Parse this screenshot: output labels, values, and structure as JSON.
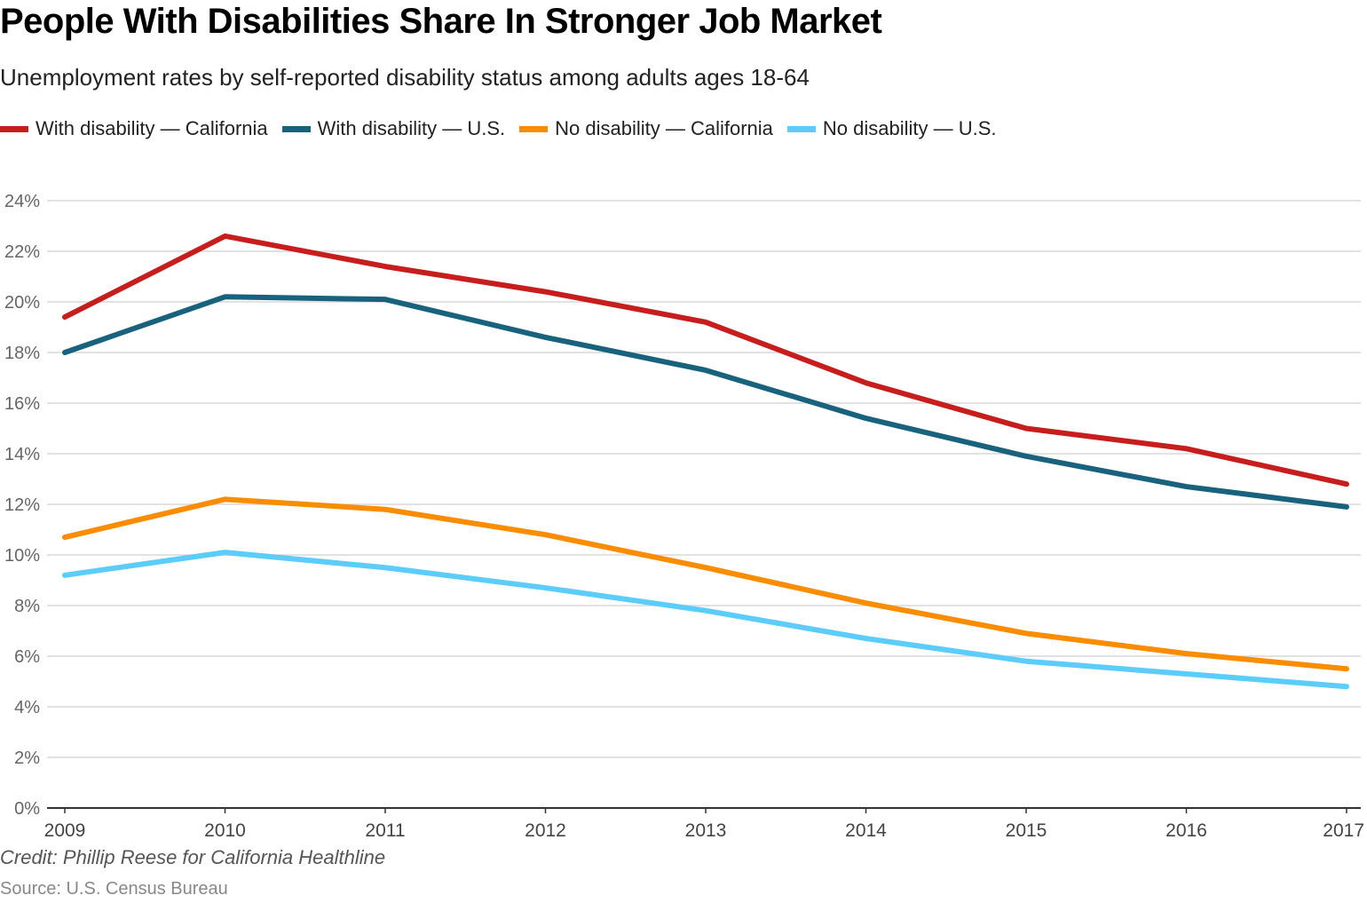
{
  "chart_data": {
    "type": "line",
    "title": "People With Disabilities Share In Stronger Job Market",
    "subtitle": "Unemployment rates by self-reported disability status among adults ages 18-64",
    "x": [
      "2009",
      "2010",
      "2011",
      "2012",
      "2013",
      "2014",
      "2015",
      "2016",
      "2017"
    ],
    "ylim": [
      0,
      24
    ],
    "yticks": [
      "0%",
      "2%",
      "4%",
      "6%",
      "8%",
      "10%",
      "12%",
      "14%",
      "16%",
      "18%",
      "20%",
      "22%",
      "24%"
    ],
    "grid": true,
    "legend_position": "top-left",
    "series": [
      {
        "name": "With disability — California",
        "color": "#c71e1d",
        "values": [
          19.4,
          22.6,
          21.4,
          20.4,
          19.2,
          16.8,
          15.0,
          14.2,
          12.8
        ]
      },
      {
        "name": "With disability — U.S.",
        "color": "#18627e",
        "values": [
          18.0,
          20.2,
          20.1,
          18.6,
          17.3,
          15.4,
          13.9,
          12.7,
          11.9
        ]
      },
      {
        "name": "No disability — California",
        "color": "#fa8c00",
        "values": [
          10.7,
          12.2,
          11.8,
          10.8,
          9.5,
          8.1,
          6.9,
          6.1,
          5.5
        ]
      },
      {
        "name": "No disability — U.S.",
        "color": "#5cccfa",
        "values": [
          9.2,
          10.1,
          9.5,
          8.7,
          7.8,
          6.7,
          5.8,
          5.3,
          4.8
        ]
      }
    ],
    "credit": "Credit: Phillip Reese for California Healthline",
    "source": "Source: U.S. Census Bureau"
  }
}
